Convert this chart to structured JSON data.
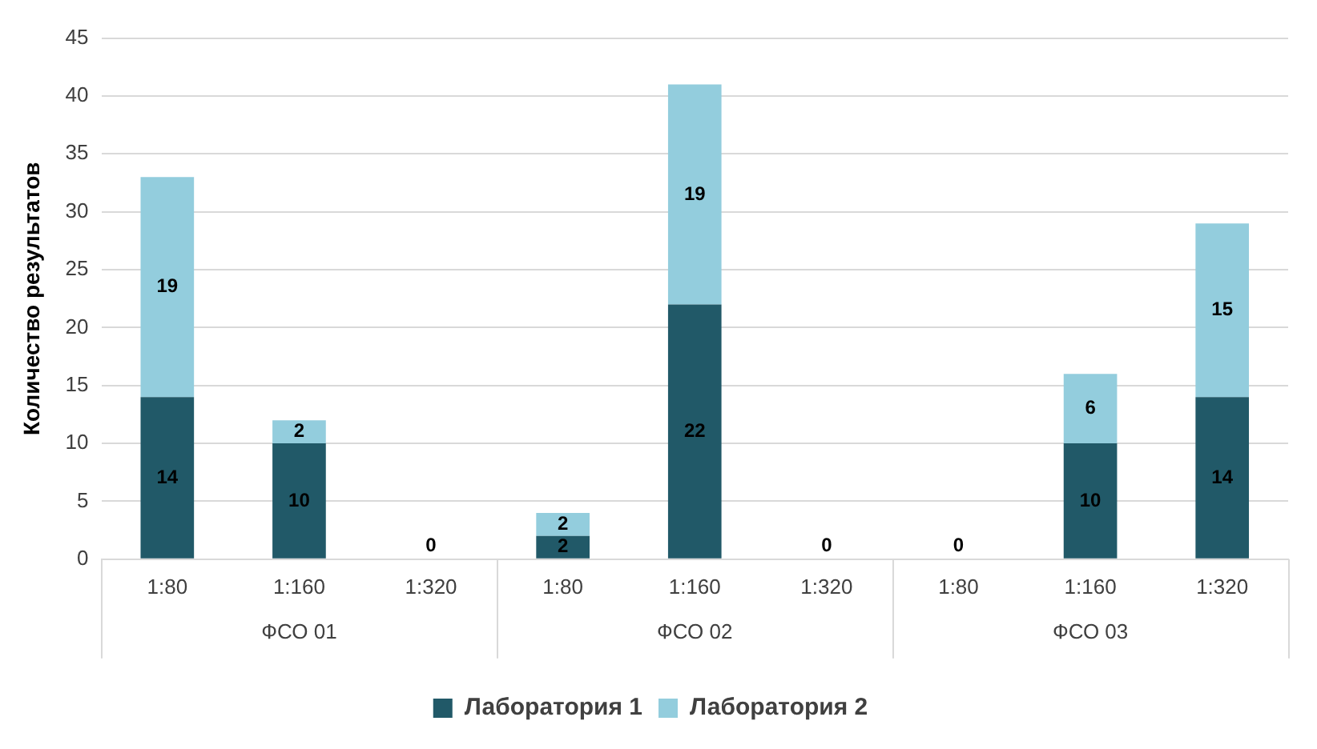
{
  "chart_data": {
    "type": "bar",
    "stacked": true,
    "ylabel": "Количество результатов",
    "categories": [
      "1:80",
      "1:160",
      "1:320",
      "1:80",
      "1:160",
      "1:320",
      "1:80",
      "1:160",
      "1:320"
    ],
    "annotations": [
      "ФСО 01",
      "ФСО 02",
      "ФСО 03"
    ],
    "series": [
      {
        "name": "Лаборатория 1",
        "color": "#215968",
        "values": [
          14,
          10,
          0,
          2,
          22,
          0,
          0,
          10,
          14
        ],
        "value_labels": [
          "14",
          "10",
          "0",
          "2",
          "22",
          "0",
          "0",
          "10",
          "14"
        ]
      },
      {
        "name": "Лаборатория 2",
        "color": "#93cddd",
        "values": [
          19,
          2,
          0,
          2,
          19,
          0,
          0,
          6,
          15
        ],
        "value_labels": [
          "19",
          "2",
          null,
          "2",
          "19",
          null,
          null,
          "6",
          "15"
        ]
      }
    ],
    "ylim": [
      0,
      45
    ],
    "yticks": [
      0,
      5,
      10,
      15,
      20,
      25,
      30,
      35,
      40,
      45
    ],
    "grid": "y",
    "legend": "bottom"
  }
}
